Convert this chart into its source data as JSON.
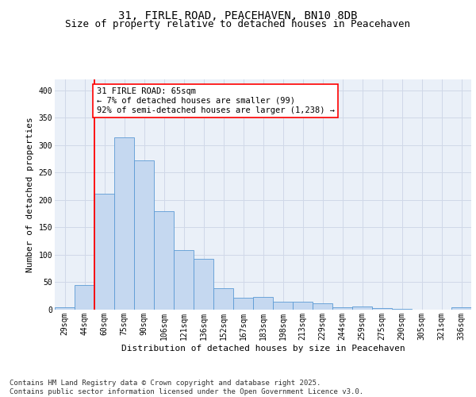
{
  "title_line1": "31, FIRLE ROAD, PEACEHAVEN, BN10 8DB",
  "title_line2": "Size of property relative to detached houses in Peacehaven",
  "xlabel": "Distribution of detached houses by size in Peacehaven",
  "ylabel": "Number of detached properties",
  "categories": [
    "29sqm",
    "44sqm",
    "60sqm",
    "75sqm",
    "90sqm",
    "106sqm",
    "121sqm",
    "136sqm",
    "152sqm",
    "167sqm",
    "183sqm",
    "198sqm",
    "213sqm",
    "229sqm",
    "244sqm",
    "259sqm",
    "275sqm",
    "290sqm",
    "305sqm",
    "321sqm",
    "336sqm"
  ],
  "values": [
    5,
    45,
    212,
    315,
    272,
    179,
    109,
    92,
    39,
    22,
    23,
    15,
    14,
    11,
    5,
    6,
    3,
    2,
    0,
    0,
    4
  ],
  "bar_color": "#c5d8f0",
  "bar_edge_color": "#5b9bd5",
  "vline_x": 1.5,
  "vline_color": "red",
  "annotation_text": "31 FIRLE ROAD: 65sqm\n← 7% of detached houses are smaller (99)\n92% of semi-detached houses are larger (1,238) →",
  "annotation_box_color": "white",
  "annotation_box_edge": "red",
  "ylim": [
    0,
    420
  ],
  "yticks": [
    0,
    50,
    100,
    150,
    200,
    250,
    300,
    350,
    400
  ],
  "grid_color": "#d0d8e8",
  "background_color": "#eaf0f8",
  "footer_text": "Contains HM Land Registry data © Crown copyright and database right 2025.\nContains public sector information licensed under the Open Government Licence v3.0.",
  "title_fontsize": 10,
  "subtitle_fontsize": 9,
  "axis_label_fontsize": 8,
  "tick_fontsize": 7,
  "annotation_fontsize": 7.5,
  "footer_fontsize": 6.5
}
